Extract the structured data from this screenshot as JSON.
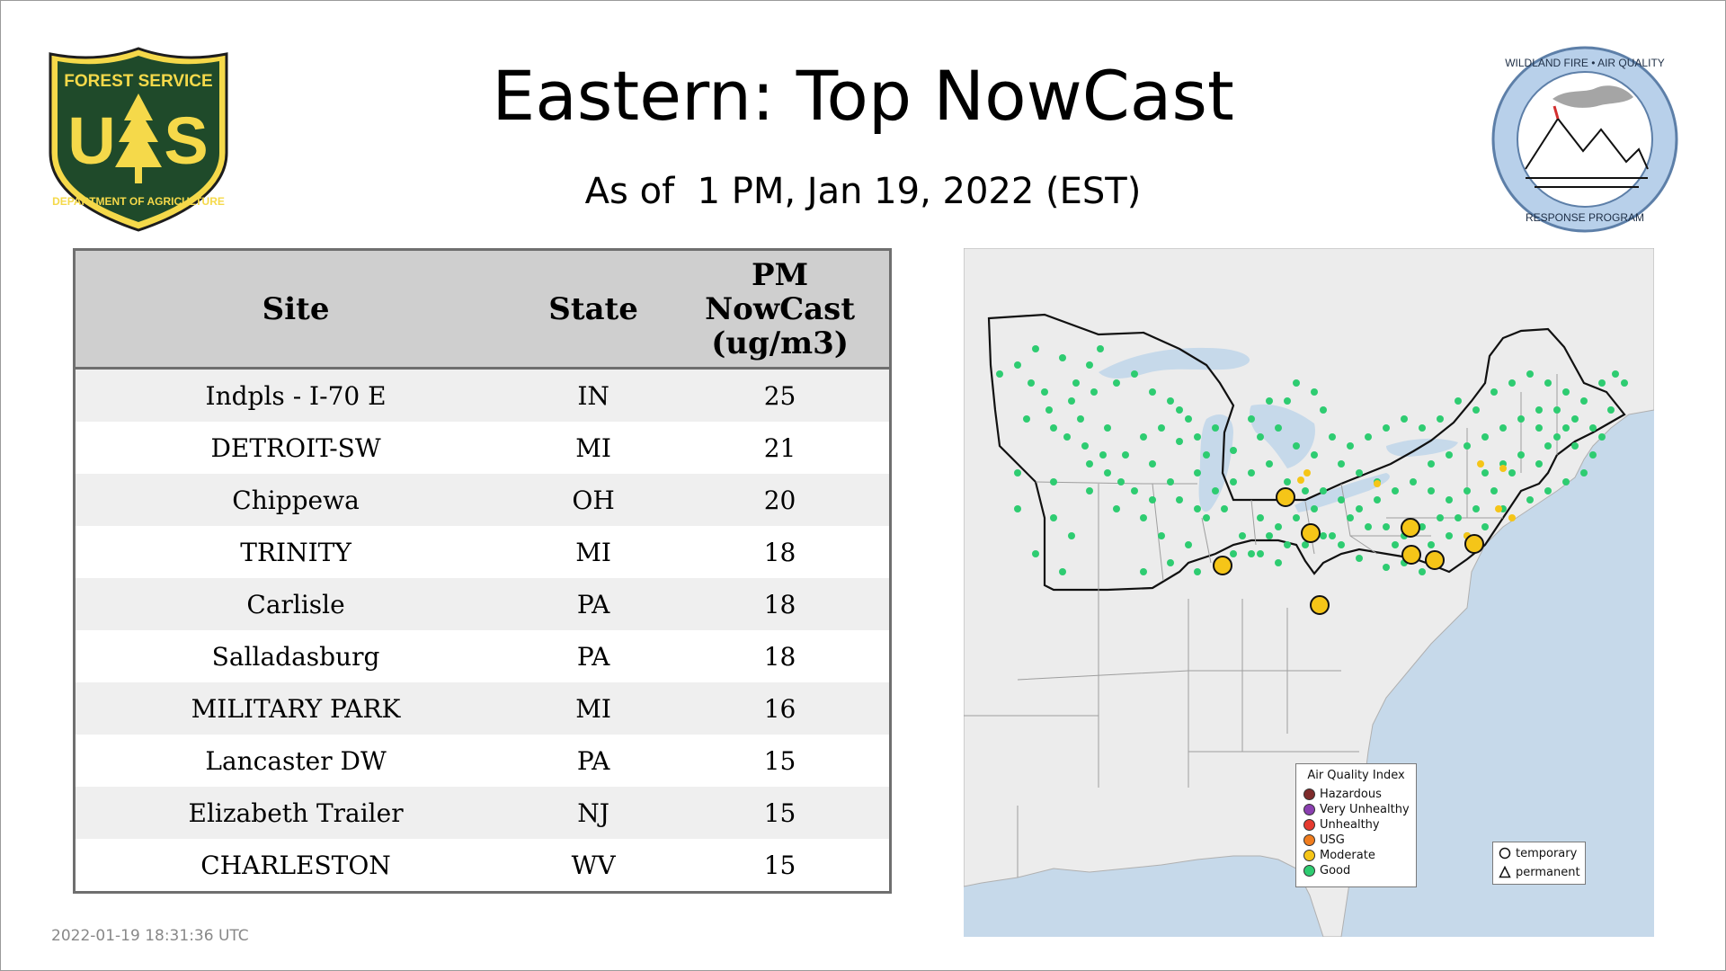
{
  "header": {
    "title": "Eastern: Top NowCast",
    "subtitle": "As of  1 PM, Jan 19, 2022 (EST)"
  },
  "logos": {
    "usfs": {
      "top_text": "FOREST SERVICE",
      "letters": "US",
      "bottom_text": "DEPARTMENT OF AGRICULTURE"
    },
    "wfaq": {
      "top_text": "WILDLAND FIRE • AIR QUALITY",
      "bottom_text": "RESPONSE PROGRAM"
    }
  },
  "table": {
    "headers": {
      "site": "Site",
      "state": "State",
      "value": [
        "PM",
        "NowCast",
        "(ug/m3)"
      ]
    },
    "rows": [
      {
        "site": "Indpls - I-70 E",
        "state": "IN",
        "value": "25"
      },
      {
        "site": "DETROIT-SW",
        "state": "MI",
        "value": "21"
      },
      {
        "site": "Chippewa",
        "state": "OH",
        "value": "20"
      },
      {
        "site": "TRINITY",
        "state": "MI",
        "value": "18"
      },
      {
        "site": "Carlisle",
        "state": "PA",
        "value": "18"
      },
      {
        "site": "Salladasburg",
        "state": "PA",
        "value": "18"
      },
      {
        "site": "MILITARY PARK",
        "state": "MI",
        "value": "16"
      },
      {
        "site": "Lancaster DW",
        "state": "PA",
        "value": "15"
      },
      {
        "site": "Elizabeth Trailer",
        "state": "NJ",
        "value": "15"
      },
      {
        "site": "CHARLESTON",
        "state": "WV",
        "value": "15"
      }
    ]
  },
  "map": {
    "legend": {
      "title": "Air Quality Index",
      "items": [
        {
          "label": "Hazardous",
          "color": "#7e2b2b"
        },
        {
          "label": "Very Unhealthy",
          "color": "#8a3fb0"
        },
        {
          "label": "Unhealthy",
          "color": "#e53a2f"
        },
        {
          "label": "USG",
          "color": "#f07d1e"
        },
        {
          "label": "Moderate",
          "color": "#f5c518"
        },
        {
          "label": "Good",
          "color": "#2ecc71"
        }
      ]
    },
    "marker_legend": {
      "temporary": "temporary",
      "permanent": "permanent"
    },
    "colors": {
      "land": "#ececec",
      "water": "#c6d9ea",
      "good": "#2ecc71",
      "moderate": "#f5c518"
    }
  },
  "footer": {
    "timestamp": "2022-01-19 18:31:36 UTC"
  }
}
